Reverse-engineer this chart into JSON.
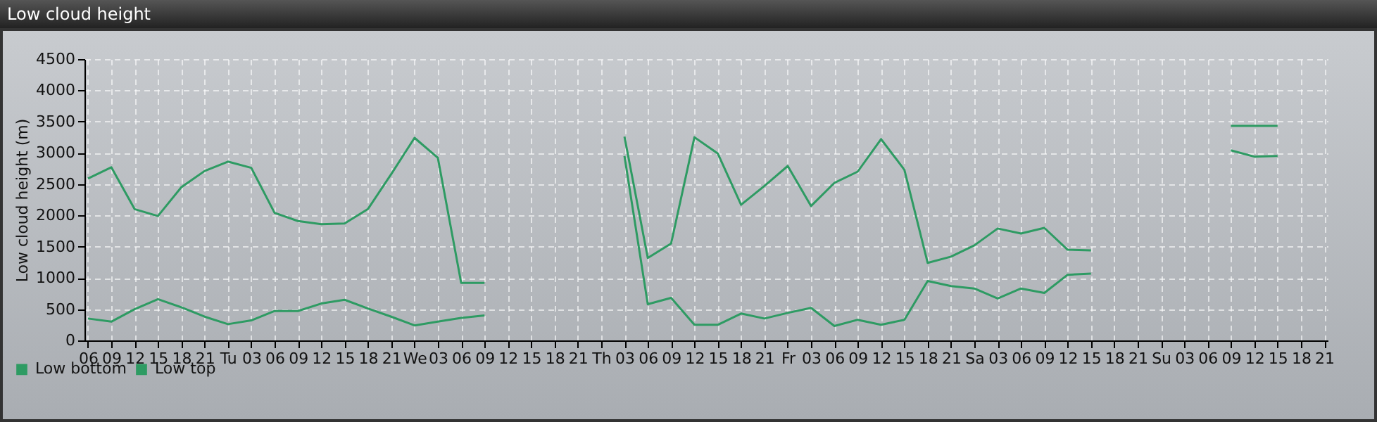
{
  "chart_data": {
    "type": "line",
    "title": "Low cloud height",
    "ylabel": "Low cloud height (m)",
    "categories": [
      "06",
      "09",
      "12",
      "15",
      "18",
      "21",
      "Tu",
      "03",
      "06",
      "09",
      "12",
      "15",
      "18",
      "21",
      "We",
      "03",
      "06",
      "09",
      "12",
      "15",
      "18",
      "21",
      "Th",
      "03",
      "06",
      "09",
      "12",
      "15",
      "18",
      "21",
      "Fr",
      "03",
      "06",
      "09",
      "12",
      "15",
      "18",
      "21",
      "Sa",
      "03",
      "06",
      "09",
      "12",
      "15",
      "18",
      "21",
      "Su",
      "03",
      "06",
      "09",
      "12",
      "15",
      "18",
      "21"
    ],
    "series": [
      {
        "name": "Low bottom",
        "color": "#2e9b63",
        "values": [
          350,
          300,
          500,
          660,
          530,
          380,
          260,
          320,
          470,
          470,
          590,
          650,
          510,
          380,
          240,
          300,
          360,
          400,
          null,
          null,
          null,
          null,
          null,
          2950,
          580,
          680,
          250,
          250,
          430,
          350,
          440,
          520,
          230,
          330,
          250,
          330,
          950,
          870,
          830,
          670,
          830,
          760,
          1050,
          1070,
          null,
          null,
          null,
          null,
          null,
          3040,
          2940,
          2950,
          null,
          null
        ]
      },
      {
        "name": "Low top",
        "color": "#2e9b63",
        "values": [
          2590,
          2770,
          2100,
          1990,
          2450,
          2710,
          2860,
          2760,
          2040,
          1910,
          1860,
          1870,
          2100,
          2660,
          3240,
          2920,
          920,
          920,
          null,
          null,
          null,
          null,
          null,
          3260,
          1320,
          1550,
          3250,
          2990,
          2170,
          2470,
          2790,
          2150,
          2520,
          2700,
          3220,
          2730,
          1240,
          1340,
          1520,
          1790,
          1710,
          1800,
          1450,
          1440,
          null,
          null,
          null,
          null,
          null,
          3430,
          3430,
          3430,
          null,
          null
        ]
      }
    ],
    "ylim": [
      0,
      4500
    ],
    "yticks": [
      0,
      500,
      1000,
      1500,
      2000,
      2500,
      3000,
      3500,
      4000,
      4500
    ],
    "grid": true,
    "legend": "bottom left",
    "line_style": "solid",
    "marker": "none"
  }
}
